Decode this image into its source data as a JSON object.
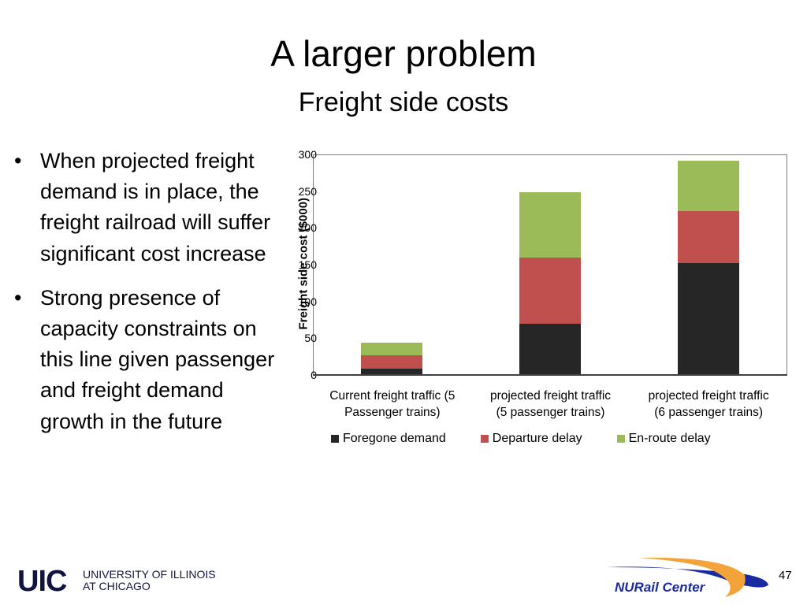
{
  "slide": {
    "title": "A larger problem",
    "subtitle": "Freight side costs",
    "page_number": "47"
  },
  "bullets": [
    {
      "marker": "•",
      "text": "When projected freight demand is in place, the freight railroad will suffer significant cost increase"
    },
    {
      "marker": "•",
      "text": "Strong presence of capacity constraints on this line given passenger and freight demand growth in the future"
    }
  ],
  "footer": {
    "uic_mark": "UIC",
    "uic_line1": "UNIVERSITY OF ILLINOIS",
    "uic_line2": "AT CHICAGO",
    "nurail_label": "NURail Center"
  },
  "colors": {
    "foregone": "#262626",
    "departure": "#c0504d",
    "enroute": "#9bbb59"
  },
  "chart_data": {
    "type": "bar",
    "stacked": true,
    "title": "",
    "xlabel": "",
    "ylabel": "Freight side cost ($000)",
    "ylim": [
      0,
      300
    ],
    "yticks": [
      "0",
      "50",
      "100",
      "150",
      "200",
      "250",
      "300"
    ],
    "grid": false,
    "legend_position": "bottom",
    "categories": [
      "Current freight traffic (5 Passenger trains)",
      "projected freight traffic (5 passenger trains)",
      "projected freight traffic (6 passenger trains)"
    ],
    "category_lines": [
      [
        "Current freight traffic (5",
        "Passenger trains)"
      ],
      [
        "projected freight traffic",
        "(5 passenger trains)"
      ],
      [
        "projected freight traffic",
        "(6 passenger trains)"
      ]
    ],
    "series": [
      {
        "name": "Foregone demand",
        "values": [
          9,
          70,
          152
        ]
      },
      {
        "name": "Departure delay",
        "values": [
          18,
          90,
          71
        ]
      },
      {
        "name": "En-route delay",
        "values": [
          17,
          89,
          68
        ]
      }
    ]
  }
}
